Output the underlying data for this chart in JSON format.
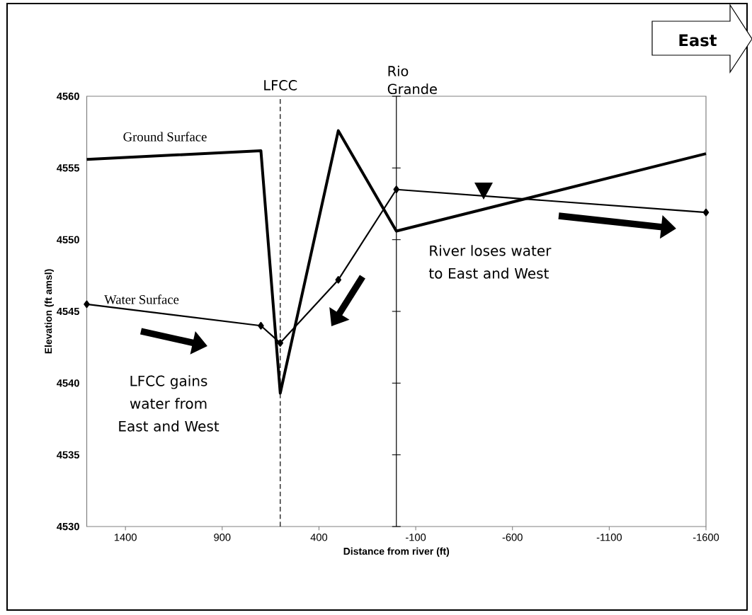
{
  "chart_data": {
    "type": "line",
    "xlabel": "Distance from river (ft)",
    "ylabel": "Elevation (ft amsl)",
    "x": [
      1600,
      700,
      600,
      300,
      0,
      -1600
    ],
    "series": [
      {
        "name": "Ground Surface",
        "color": "#000000",
        "marker": "none",
        "values": [
          4555.6,
          4556.2,
          4539.3,
          4557.6,
          4550.6,
          4556.0
        ]
      },
      {
        "name": "Water Surface",
        "color": "#000000",
        "marker": "diamond",
        "values": [
          4545.5,
          4544.0,
          4542.8,
          4547.2,
          4553.5,
          4551.9
        ]
      }
    ],
    "xlim": [
      1600,
      -1600
    ],
    "xticks": [
      1400,
      900,
      400,
      -100,
      -600,
      -1100,
      -1600
    ],
    "ylim": [
      4530,
      4560
    ],
    "yticks": [
      4530,
      4535,
      4540,
      4545,
      4550,
      4555,
      4560
    ],
    "ref_lines": [
      {
        "axis": "x",
        "value": 600,
        "label": "LFCC",
        "color": "#000000",
        "line_style": "dashed"
      },
      {
        "axis": "x",
        "value": 0,
        "label": "Rio Grande",
        "color": "#000000",
        "line_style": "solid"
      }
    ],
    "annotations": [
      "LFCC gains water from East and West",
      "River loses water to East and West",
      "East"
    ]
  }
}
